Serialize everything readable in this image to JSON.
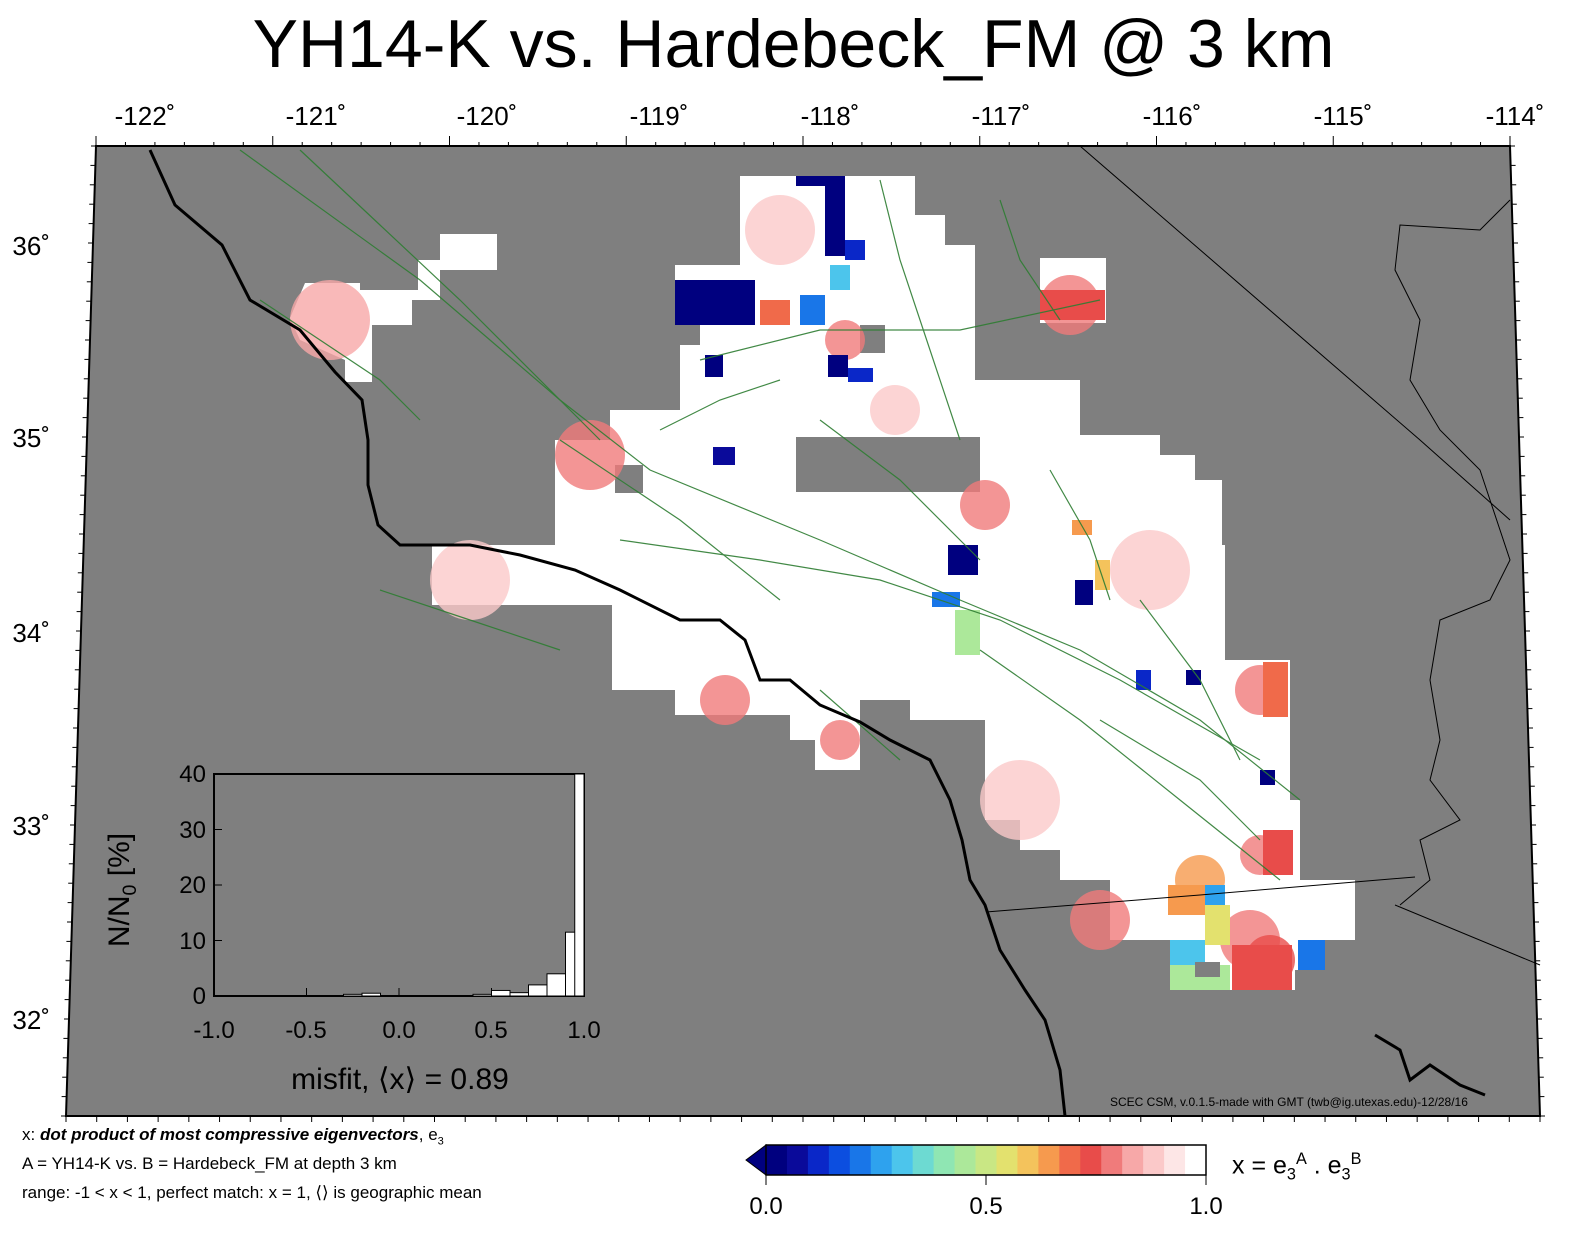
{
  "title": "YH14-K vs. Hardebeck_FM @ 3 km",
  "map": {
    "lon_labels": [
      "-122˚",
      "-121˚",
      "-120˚",
      "-119˚",
      "-118˚",
      "-117˚",
      "-116˚",
      "-115˚",
      "-114˚"
    ],
    "lat_labels": [
      "36˚",
      "35˚",
      "34˚",
      "33˚",
      "32˚"
    ],
    "colors": {
      "land_no_data": "#7f7f7f",
      "fault_lines": "#2e7d32",
      "coastline": "#000000",
      "border": "#000000"
    }
  },
  "inset": {
    "y_ticks": [
      "40",
      "30",
      "20",
      "10",
      "0"
    ],
    "x_ticks": [
      "-1.0",
      "-0.5",
      "0.0",
      "0.5",
      "1.0"
    ],
    "ylabel_text": "N/N",
    "ylabel_sub": "0",
    "ylabel_unit": " [%]",
    "xlabel": "misfit, ⟨x⟩ = 0.89",
    "chart_data": {
      "type": "bar",
      "x": [
        -0.25,
        -0.15,
        0.45,
        0.55,
        0.65,
        0.75,
        0.85,
        0.95
      ],
      "values": [
        0.3,
        0.5,
        0.3,
        1.0,
        0.6,
        2.0,
        4.0,
        11.5
      ],
      "values_last_bin": 40,
      "xlim": [
        -1.0,
        1.0
      ],
      "ylim": [
        0,
        40
      ],
      "bin_width": 0.1,
      "xlabel": "misfit, ⟨x⟩ = 0.89",
      "ylabel": "N/N0 [%]"
    }
  },
  "credit": "SCEC CSM, v.0.1.5-made with GMT (twb@ig.utexas.edu)-12/28/16",
  "notes": {
    "line1_prefix": "x: ",
    "line1_emph": "dot product of most compressive eigenvectors",
    "line1_suffix": ", e",
    "line1_sub": "3",
    "line2": "A = YH14-K vs.  B = Hardebeck_FM at depth 3 km",
    "line3": "range: -1 < x < 1, perfect match: x = 1, ⟨⟩ is geographic mean"
  },
  "colorbar": {
    "ticks": [
      "0.0",
      "0.5",
      "1.0"
    ],
    "label_prefix": "x = e",
    "label_sub": "3",
    "label_sup_a": "A",
    "label_dot": " . e",
    "label_sup_b": "B",
    "colors": [
      "#00007f",
      "#0a0a9a",
      "#0a27c8",
      "#0c4ee0",
      "#1976e8",
      "#2ea2ee",
      "#4cc5ec",
      "#6ddad2",
      "#8fe6b3",
      "#ace89a",
      "#c9e784",
      "#e3e16e",
      "#f4c35c",
      "#f69a4e",
      "#f06a4a",
      "#e84c4a",
      "#f07b7b",
      "#f7a8a8",
      "#fbc9c9",
      "#fde6e6",
      "#ffffff"
    ]
  }
}
